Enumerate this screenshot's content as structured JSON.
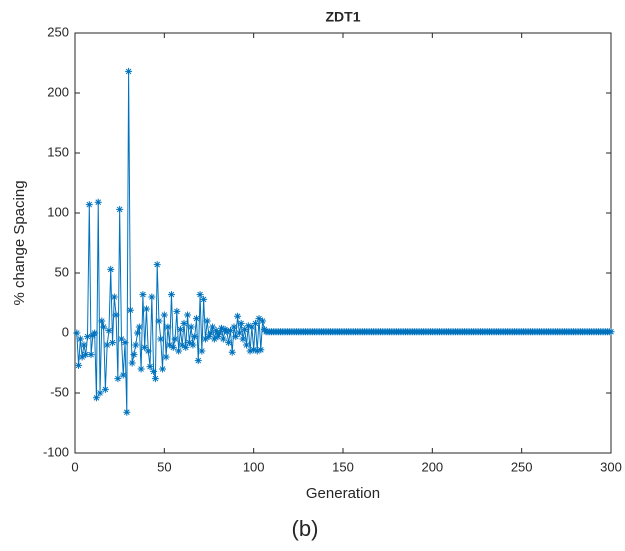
{
  "chart_data": {
    "type": "line",
    "title": "ZDT1",
    "xlabel": "Generation",
    "ylabel": "% change Spacing",
    "caption": "(b)",
    "xlim": [
      0,
      300
    ],
    "xticks": [
      0,
      50,
      100,
      150,
      200,
      250,
      300
    ],
    "ylim": [
      -100,
      250
    ],
    "yticks": [
      -100,
      -50,
      0,
      50,
      100,
      150,
      200,
      250
    ],
    "grid": false,
    "marker": "*",
    "x": [
      1,
      2,
      3,
      4,
      5,
      6,
      7,
      8,
      9,
      10,
      11,
      12,
      13,
      14,
      15,
      16,
      17,
      18,
      19,
      20,
      21,
      22,
      23,
      24,
      25,
      26,
      27,
      28,
      29,
      30,
      31,
      32,
      33,
      34,
      35,
      36,
      37,
      38,
      39,
      40,
      41,
      42,
      43,
      44,
      45,
      46,
      47,
      48,
      49,
      50,
      51,
      52,
      53,
      54,
      55,
      56,
      57,
      58,
      59,
      60,
      61,
      62,
      63,
      64,
      65,
      66,
      67,
      68,
      69,
      70,
      71,
      72,
      73,
      74,
      75,
      76,
      77,
      78,
      79,
      80,
      81,
      82,
      83,
      84,
      85,
      86,
      87,
      88,
      89,
      90,
      91,
      92,
      93,
      94,
      95,
      96,
      97,
      98,
      99,
      100,
      101,
      102,
      103,
      104,
      105,
      106,
      107,
      108,
      109,
      110,
      111,
      112,
      113,
      114,
      115,
      116,
      117,
      118,
      119,
      120,
      121,
      122,
      123,
      124,
      125,
      126,
      127,
      128,
      129,
      130,
      131,
      132,
      133,
      134,
      135,
      136,
      137,
      138,
      139,
      140,
      141,
      142,
      143,
      144,
      145,
      146,
      147,
      148,
      149,
      150,
      151,
      152,
      153,
      154,
      155,
      156,
      157,
      158,
      159,
      160,
      161,
      162,
      163,
      164,
      165,
      166,
      167,
      168,
      169,
      170,
      171,
      172,
      173,
      174,
      175,
      176,
      177,
      178,
      179,
      180,
      181,
      182,
      183,
      184,
      185,
      186,
      187,
      188,
      189,
      190,
      191,
      192,
      193,
      194,
      195,
      196,
      197,
      198,
      199,
      200,
      201,
      202,
      203,
      204,
      205,
      206,
      207,
      208,
      209,
      210,
      211,
      212,
      213,
      214,
      215,
      216,
      217,
      218,
      219,
      220,
      221,
      222,
      223,
      224,
      225,
      226,
      227,
      228,
      229,
      230,
      231,
      232,
      233,
      234,
      235,
      236,
      237,
      238,
      239,
      240,
      241,
      242,
      243,
      244,
      245,
      246,
      247,
      248,
      249,
      250,
      251,
      252,
      253,
      254,
      255,
      256,
      257,
      258,
      259,
      260,
      261,
      262,
      263,
      264,
      265,
      266,
      267,
      268,
      269,
      270,
      271,
      272,
      273,
      274,
      275,
      276,
      277,
      278,
      279,
      280,
      281,
      282,
      283,
      284,
      285,
      286,
      287,
      288,
      289,
      290,
      291,
      292,
      293,
      294,
      295,
      296,
      297,
      298,
      299,
      300
    ],
    "series": [
      {
        "color": "#0072bd",
        "values": [
          0,
          -27,
          -5,
          -20,
          -10,
          -18,
          -3,
          107,
          -18,
          -2,
          0,
          -54,
          109,
          -50,
          10,
          5,
          -47,
          -10,
          2,
          53,
          -8,
          30,
          15,
          -38,
          103,
          -5,
          -35,
          -8,
          -66,
          218,
          19,
          -25,
          -18,
          -10,
          0,
          5,
          -30,
          32,
          -12,
          20,
          -15,
          -28,
          30,
          -32,
          -38,
          57,
          10,
          -5,
          -30,
          15,
          -20,
          5,
          -10,
          32,
          -12,
          -5,
          18,
          -15,
          3,
          -10,
          8,
          -12,
          15,
          -8,
          5,
          -10,
          -3,
          12,
          -23,
          32,
          -15,
          28,
          -5,
          10,
          -3,
          0,
          5,
          -5,
          2,
          -3,
          0,
          4,
          -5,
          3,
          1,
          -8,
          2,
          -16,
          5,
          -3,
          14,
          0,
          8,
          -5,
          3,
          -10,
          6,
          -15,
          5,
          -14,
          8,
          -15,
          12,
          -14,
          10,
          3,
          1,
          1,
          1,
          1,
          1,
          1,
          1,
          1,
          1,
          1,
          1,
          1,
          1,
          1,
          1,
          1,
          1,
          1,
          1,
          1,
          1,
          1,
          1,
          1,
          1,
          1,
          1,
          1,
          1,
          1,
          1,
          1,
          1,
          1,
          1,
          1,
          1,
          1,
          1,
          1,
          1,
          1,
          1,
          1,
          1,
          1,
          1,
          1,
          1,
          1,
          1,
          1,
          1,
          1,
          1,
          1,
          1,
          1,
          1,
          1,
          1,
          1,
          1,
          1,
          1,
          1,
          1,
          1,
          1,
          1,
          1,
          1,
          1,
          1,
          1,
          1,
          1,
          1,
          1,
          1,
          1,
          1,
          1,
          1,
          1,
          1,
          1,
          1,
          1,
          1,
          1,
          1,
          1,
          1,
          1,
          1,
          1,
          1,
          1,
          1,
          1,
          1,
          1,
          1,
          1,
          1,
          1,
          1,
          1,
          1,
          1,
          1,
          1,
          1,
          1,
          1,
          1,
          1,
          1,
          1,
          1,
          1,
          1,
          1,
          1,
          1,
          1,
          1,
          1,
          1,
          1,
          1,
          1,
          1,
          1,
          1,
          1,
          1,
          1,
          1,
          1,
          1,
          1,
          1,
          1,
          1,
          1,
          1,
          1,
          1,
          1,
          1,
          1,
          1,
          1,
          1,
          1,
          1,
          1,
          1,
          1,
          1,
          1,
          1,
          1,
          1,
          1,
          1,
          1,
          1,
          1,
          1,
          1,
          1,
          1,
          1,
          1,
          1,
          1,
          1,
          1,
          1,
          1,
          1,
          1,
          1,
          1,
          1,
          1,
          1,
          1,
          1,
          1,
          1
        ]
      }
    ]
  }
}
